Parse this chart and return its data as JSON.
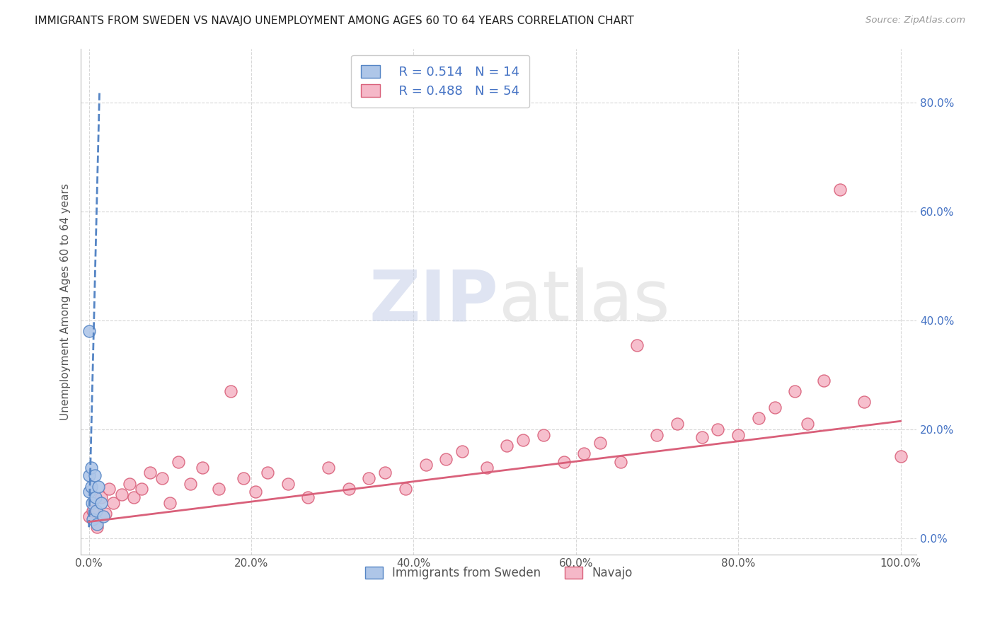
{
  "title": "IMMIGRANTS FROM SWEDEN VS NAVAJO UNEMPLOYMENT AMONG AGES 60 TO 64 YEARS CORRELATION CHART",
  "source": "Source: ZipAtlas.com",
  "ylabel_label": "Unemployment Among Ages 60 to 64 years",
  "xlim": [
    -0.01,
    1.02
  ],
  "ylim": [
    -0.03,
    0.9
  ],
  "xticks": [
    0.0,
    0.2,
    0.4,
    0.6,
    0.8,
    1.0
  ],
  "xticklabels": [
    "0.0%",
    "20.0%",
    "40.0%",
    "60.0%",
    "80.0%",
    "100.0%"
  ],
  "yticks": [
    0.0,
    0.2,
    0.4,
    0.6,
    0.8
  ],
  "yticklabels": [
    "0.0%",
    "20.0%",
    "40.0%",
    "60.0%",
    "80.0%"
  ],
  "legend_R1": "R = 0.514",
  "legend_N1": "N = 14",
  "legend_R2": "R = 0.488",
  "legend_N2": "N = 54",
  "blue_color": "#aec6e8",
  "pink_color": "#f5b8c8",
  "blue_line_color": "#5585c5",
  "pink_line_color": "#d9607a",
  "text_color": "#4472c4",
  "sweden_scatter_x": [
    0.0,
    0.0,
    0.0,
    0.003,
    0.003,
    0.004,
    0.005,
    0.007,
    0.008,
    0.009,
    0.01,
    0.012,
    0.015,
    0.018
  ],
  "sweden_scatter_y": [
    0.38,
    0.115,
    0.085,
    0.13,
    0.095,
    0.065,
    0.035,
    0.115,
    0.075,
    0.05,
    0.025,
    0.095,
    0.065,
    0.04
  ],
  "navajo_scatter_x": [
    0.0,
    0.005,
    0.01,
    0.015,
    0.02,
    0.025,
    0.03,
    0.04,
    0.05,
    0.055,
    0.065,
    0.075,
    0.09,
    0.1,
    0.11,
    0.125,
    0.14,
    0.16,
    0.175,
    0.19,
    0.205,
    0.22,
    0.245,
    0.27,
    0.295,
    0.32,
    0.345,
    0.365,
    0.39,
    0.415,
    0.44,
    0.46,
    0.49,
    0.515,
    0.535,
    0.56,
    0.585,
    0.61,
    0.63,
    0.655,
    0.675,
    0.7,
    0.725,
    0.755,
    0.775,
    0.8,
    0.825,
    0.845,
    0.87,
    0.885,
    0.905,
    0.925,
    0.955,
    1.0
  ],
  "navajo_scatter_y": [
    0.04,
    0.05,
    0.02,
    0.075,
    0.045,
    0.09,
    0.065,
    0.08,
    0.1,
    0.075,
    0.09,
    0.12,
    0.11,
    0.065,
    0.14,
    0.1,
    0.13,
    0.09,
    0.27,
    0.11,
    0.085,
    0.12,
    0.1,
    0.075,
    0.13,
    0.09,
    0.11,
    0.12,
    0.09,
    0.135,
    0.145,
    0.16,
    0.13,
    0.17,
    0.18,
    0.19,
    0.14,
    0.155,
    0.175,
    0.14,
    0.355,
    0.19,
    0.21,
    0.185,
    0.2,
    0.19,
    0.22,
    0.24,
    0.27,
    0.21,
    0.29,
    0.64,
    0.25,
    0.15
  ],
  "sweden_trendline_x": [
    0.0,
    0.013
  ],
  "sweden_trendline_y": [
    0.02,
    0.82
  ],
  "navajo_trendline_x": [
    0.0,
    1.0
  ],
  "navajo_trendline_y": [
    0.03,
    0.215
  ],
  "watermark_zip": "ZIP",
  "watermark_atlas": "atlas",
  "background_color": "#ffffff",
  "grid_color": "#d8d8d8"
}
